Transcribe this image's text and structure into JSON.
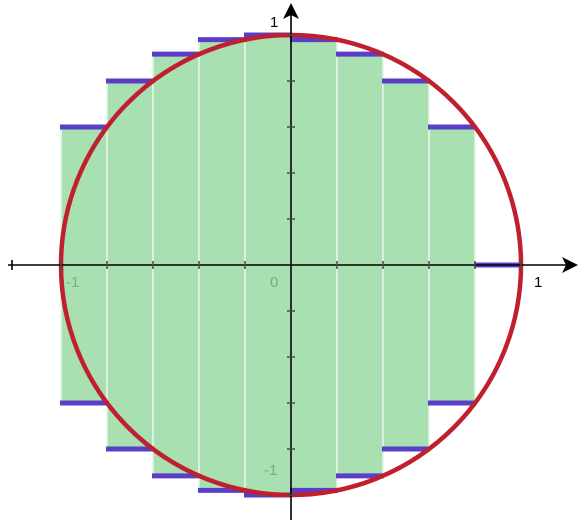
{
  "chart_data": {
    "type": "bar",
    "description_type": "riemann-sum-over-circle",
    "curve": "x^2 + y^2 = 1",
    "xlim": [
      -1,
      1
    ],
    "ylim": [
      -1,
      1
    ],
    "strips": [
      {
        "x0": -1.0,
        "x1": -0.8,
        "height": 0.6
      },
      {
        "x0": -0.8,
        "x1": -0.6,
        "height": 0.8
      },
      {
        "x0": -0.6,
        "x1": -0.4,
        "height": 0.917
      },
      {
        "x0": -0.4,
        "x1": -0.2,
        "height": 0.98
      },
      {
        "x0": -0.2,
        "x1": 0.0,
        "height": 1.0
      },
      {
        "x0": 0.0,
        "x1": 0.2,
        "height": 0.98
      },
      {
        "x0": 0.2,
        "x1": 0.4,
        "height": 0.917
      },
      {
        "x0": 0.4,
        "x1": 0.6,
        "height": 0.8
      },
      {
        "x0": 0.6,
        "x1": 0.8,
        "height": 0.6
      },
      {
        "x0": 0.8,
        "x1": 1.0,
        "height": 0.0
      }
    ],
    "minor_ticks_per_unit": 5,
    "tick_labels": {
      "x_pos": "1",
      "x_neg": "-1",
      "origin": "0",
      "y_pos": "1",
      "y_neg": "-1"
    },
    "colors": {
      "circle": "#c0202e",
      "strip_fill": "#a8e0b2",
      "strip_edge": "#5a3ec8",
      "axis": "#000000",
      "inner_label": "#7fa88a"
    }
  }
}
